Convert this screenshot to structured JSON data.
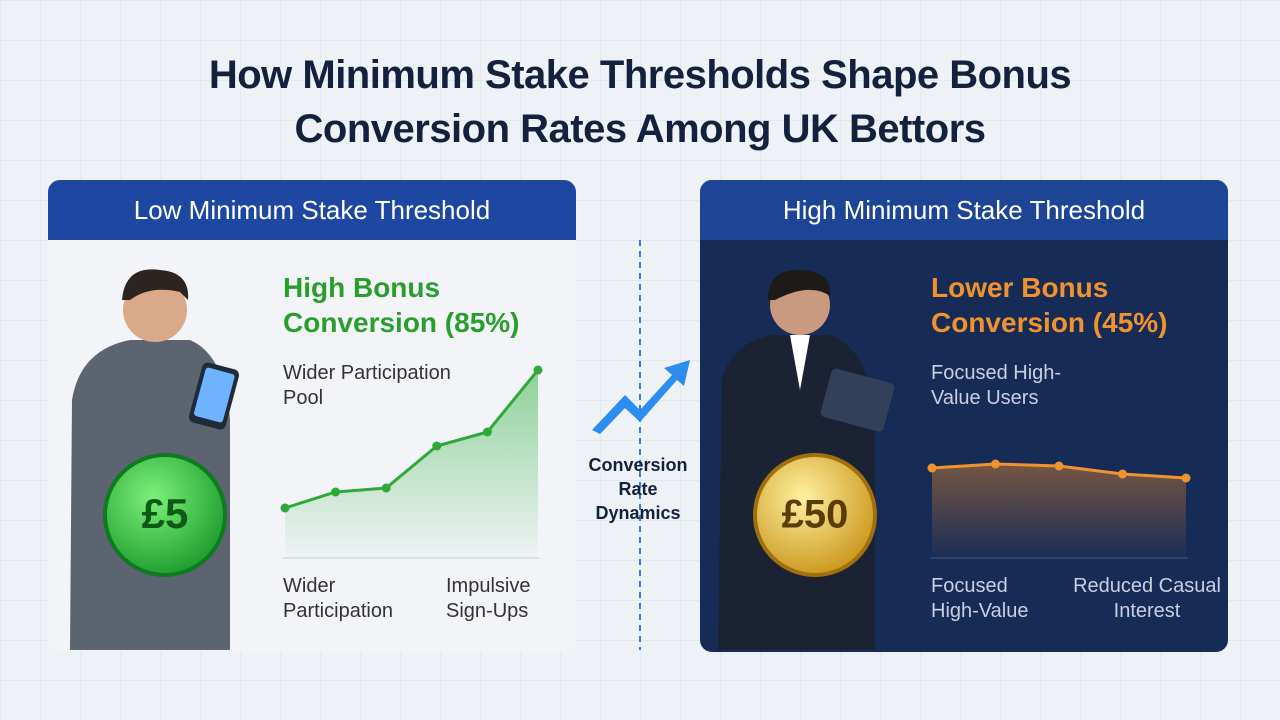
{
  "title": "How Minimum Stake Thresholds Shape Bonus Conversion Rates Among UK Bettors",
  "left_panel": {
    "header": "Low Minimum Stake Threshold",
    "stake": "£5",
    "headline": "High Bonus Conversion (85%)",
    "note": "Wider Participation Pool",
    "trend": [
      25,
      33,
      35,
      56,
      63,
      94
    ],
    "labels": [
      "Wider Participation",
      "Impulsive Sign-Ups"
    ]
  },
  "center": "Conversion Rate Dynamics",
  "right_panel": {
    "header": "High Minimum Stake Threshold",
    "stake": "£50",
    "headline": "Lower Bonus Conversion (45%)",
    "note": "Focused High-Value Users",
    "trend": [
      45,
      47,
      46,
      42,
      40
    ],
    "labels": [
      "Focused High-Value",
      "Reduced Casual Interest"
    ]
  }
}
